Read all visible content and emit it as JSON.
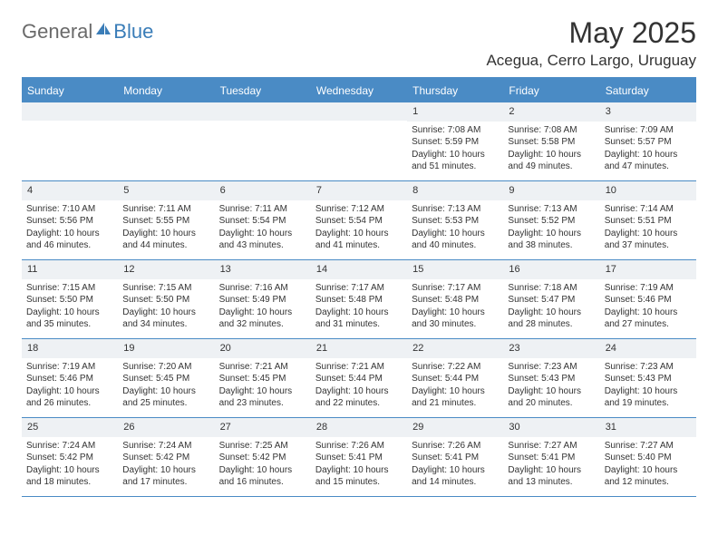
{
  "logo": {
    "text1": "General",
    "text2": "Blue"
  },
  "title": "May 2025",
  "location": "Acegua, Cerro Largo, Uruguay",
  "colors": {
    "headerBlue": "#4a8bc5",
    "dayNumBg": "#eef1f4",
    "text": "#333333",
    "logoGray": "#6a6a6a",
    "logoBlue": "#3a7db8"
  },
  "dayNames": [
    "Sunday",
    "Monday",
    "Tuesday",
    "Wednesday",
    "Thursday",
    "Friday",
    "Saturday"
  ],
  "weeks": [
    [
      null,
      null,
      null,
      null,
      {
        "n": "1",
        "sr": "7:08 AM",
        "ss": "5:59 PM",
        "dl": "10 hours and 51 minutes."
      },
      {
        "n": "2",
        "sr": "7:08 AM",
        "ss": "5:58 PM",
        "dl": "10 hours and 49 minutes."
      },
      {
        "n": "3",
        "sr": "7:09 AM",
        "ss": "5:57 PM",
        "dl": "10 hours and 47 minutes."
      }
    ],
    [
      {
        "n": "4",
        "sr": "7:10 AM",
        "ss": "5:56 PM",
        "dl": "10 hours and 46 minutes."
      },
      {
        "n": "5",
        "sr": "7:11 AM",
        "ss": "5:55 PM",
        "dl": "10 hours and 44 minutes."
      },
      {
        "n": "6",
        "sr": "7:11 AM",
        "ss": "5:54 PM",
        "dl": "10 hours and 43 minutes."
      },
      {
        "n": "7",
        "sr": "7:12 AM",
        "ss": "5:54 PM",
        "dl": "10 hours and 41 minutes."
      },
      {
        "n": "8",
        "sr": "7:13 AM",
        "ss": "5:53 PM",
        "dl": "10 hours and 40 minutes."
      },
      {
        "n": "9",
        "sr": "7:13 AM",
        "ss": "5:52 PM",
        "dl": "10 hours and 38 minutes."
      },
      {
        "n": "10",
        "sr": "7:14 AM",
        "ss": "5:51 PM",
        "dl": "10 hours and 37 minutes."
      }
    ],
    [
      {
        "n": "11",
        "sr": "7:15 AM",
        "ss": "5:50 PM",
        "dl": "10 hours and 35 minutes."
      },
      {
        "n": "12",
        "sr": "7:15 AM",
        "ss": "5:50 PM",
        "dl": "10 hours and 34 minutes."
      },
      {
        "n": "13",
        "sr": "7:16 AM",
        "ss": "5:49 PM",
        "dl": "10 hours and 32 minutes."
      },
      {
        "n": "14",
        "sr": "7:17 AM",
        "ss": "5:48 PM",
        "dl": "10 hours and 31 minutes."
      },
      {
        "n": "15",
        "sr": "7:17 AM",
        "ss": "5:48 PM",
        "dl": "10 hours and 30 minutes."
      },
      {
        "n": "16",
        "sr": "7:18 AM",
        "ss": "5:47 PM",
        "dl": "10 hours and 28 minutes."
      },
      {
        "n": "17",
        "sr": "7:19 AM",
        "ss": "5:46 PM",
        "dl": "10 hours and 27 minutes."
      }
    ],
    [
      {
        "n": "18",
        "sr": "7:19 AM",
        "ss": "5:46 PM",
        "dl": "10 hours and 26 minutes."
      },
      {
        "n": "19",
        "sr": "7:20 AM",
        "ss": "5:45 PM",
        "dl": "10 hours and 25 minutes."
      },
      {
        "n": "20",
        "sr": "7:21 AM",
        "ss": "5:45 PM",
        "dl": "10 hours and 23 minutes."
      },
      {
        "n": "21",
        "sr": "7:21 AM",
        "ss": "5:44 PM",
        "dl": "10 hours and 22 minutes."
      },
      {
        "n": "22",
        "sr": "7:22 AM",
        "ss": "5:44 PM",
        "dl": "10 hours and 21 minutes."
      },
      {
        "n": "23",
        "sr": "7:23 AM",
        "ss": "5:43 PM",
        "dl": "10 hours and 20 minutes."
      },
      {
        "n": "24",
        "sr": "7:23 AM",
        "ss": "5:43 PM",
        "dl": "10 hours and 19 minutes."
      }
    ],
    [
      {
        "n": "25",
        "sr": "7:24 AM",
        "ss": "5:42 PM",
        "dl": "10 hours and 18 minutes."
      },
      {
        "n": "26",
        "sr": "7:24 AM",
        "ss": "5:42 PM",
        "dl": "10 hours and 17 minutes."
      },
      {
        "n": "27",
        "sr": "7:25 AM",
        "ss": "5:42 PM",
        "dl": "10 hours and 16 minutes."
      },
      {
        "n": "28",
        "sr": "7:26 AM",
        "ss": "5:41 PM",
        "dl": "10 hours and 15 minutes."
      },
      {
        "n": "29",
        "sr": "7:26 AM",
        "ss": "5:41 PM",
        "dl": "10 hours and 14 minutes."
      },
      {
        "n": "30",
        "sr": "7:27 AM",
        "ss": "5:41 PM",
        "dl": "10 hours and 13 minutes."
      },
      {
        "n": "31",
        "sr": "7:27 AM",
        "ss": "5:40 PM",
        "dl": "10 hours and 12 minutes."
      }
    ]
  ],
  "labels": {
    "sunrise": "Sunrise:",
    "sunset": "Sunset:",
    "daylight": "Daylight:"
  }
}
